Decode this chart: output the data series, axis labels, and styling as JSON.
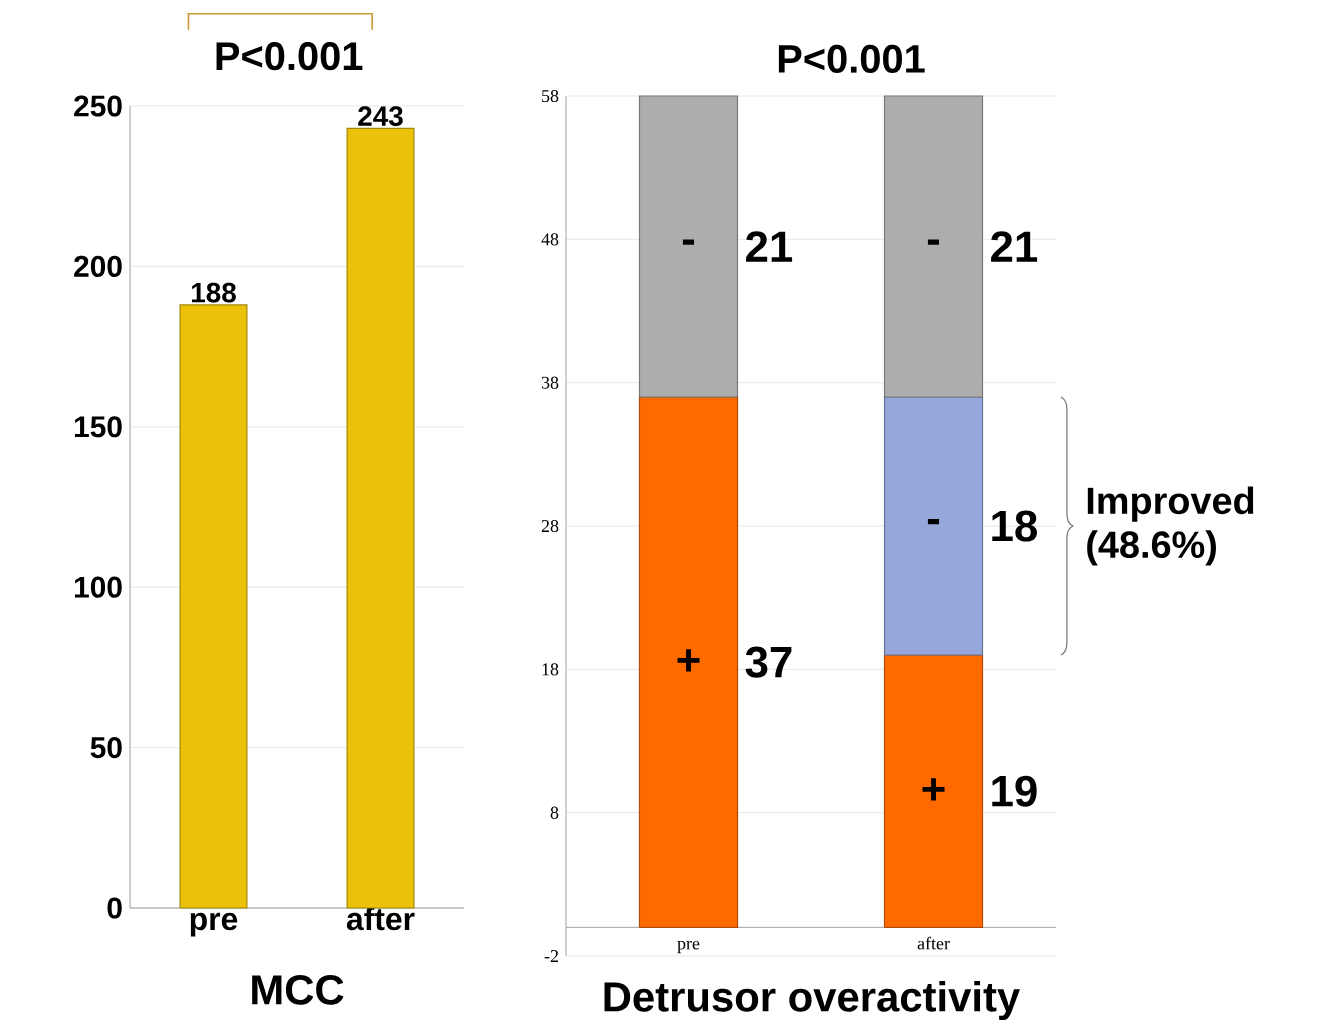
{
  "chart_data": [
    {
      "type": "bar",
      "xlabel": "MCC",
      "categories": [
        "pre",
        "after"
      ],
      "values": [
        188,
        243
      ],
      "color": "#ecc10a",
      "ylim": [
        0,
        250
      ],
      "yticks": [
        0,
        50,
        100,
        150,
        200,
        250
      ],
      "grid": "y",
      "data_labels": true,
      "annotations": [
        "P<0.001"
      ]
    },
    {
      "type": "bar",
      "stacked": true,
      "title": "P<0.001",
      "xlabel": "Detrusor overactivity",
      "categories": [
        "pre",
        "after"
      ],
      "series": [
        {
          "color": "#ff6a00",
          "values": [
            37,
            19
          ]
        },
        {
          "color": "#95a7db",
          "values": [
            null,
            18
          ]
        },
        {
          "color": "#adadad",
          "values": [
            21,
            21
          ]
        }
      ],
      "ylim": [
        -2,
        58
      ],
      "yticks": [
        -2,
        8,
        18,
        28,
        38,
        48,
        58
      ],
      "grid": "y",
      "data_labels": true,
      "annotations": [
        "+",
        "+",
        "-",
        "-",
        "-",
        "Improved (48.6%)"
      ]
    }
  ]
}
